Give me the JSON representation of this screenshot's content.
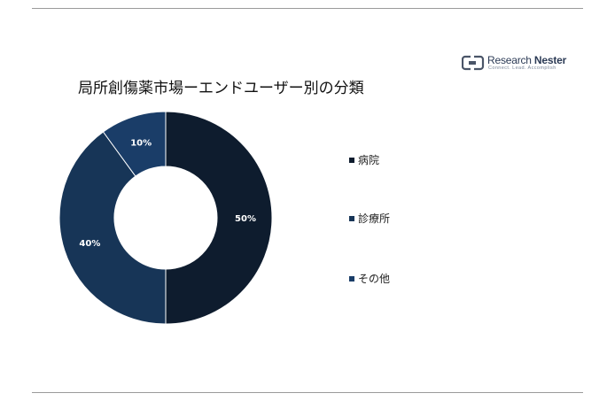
{
  "header": {
    "title": "局所創傷薬市場ーエンドユーザー別の分類"
  },
  "logo": {
    "name_light": "Research ",
    "name_bold": "Nester",
    "tagline": "Connect. Lead. Accomplish"
  },
  "chart_data": {
    "type": "pie",
    "donut": true,
    "title": "局所創傷薬市場ーエンドユーザー別の分類",
    "categories": [
      "病院",
      "診療所",
      "その他"
    ],
    "values": [
      50,
      40,
      10
    ],
    "labels": [
      "50%",
      "40%",
      "10%"
    ],
    "colors": [
      "#0e1c2e",
      "#173557",
      "#1a3d68"
    ],
    "legend_position": "right"
  }
}
